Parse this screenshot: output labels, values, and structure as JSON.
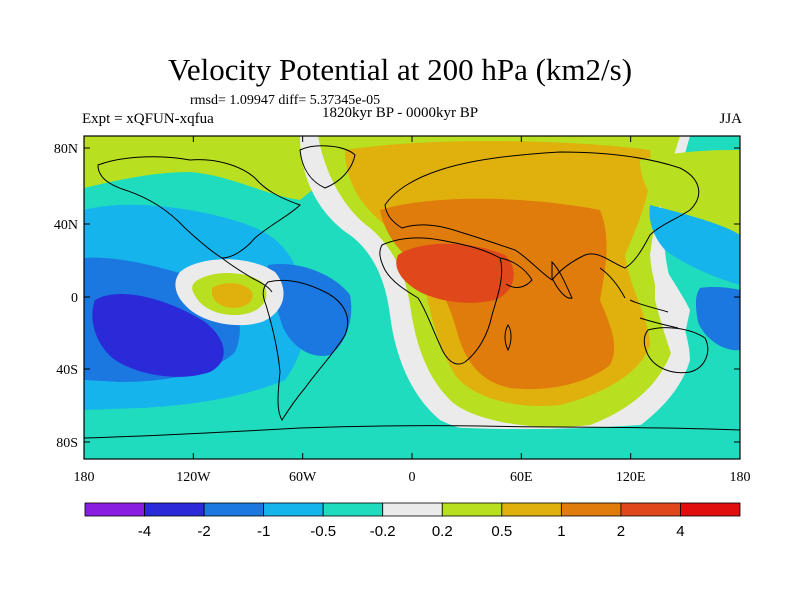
{
  "title": "Velocity Potential at 200 hPa (km2/s)",
  "stats": "rmsd= 1.09947 diff= 5.37345e-05",
  "experiment": "Expt = xQFUN-xqfua",
  "period": "1820kyr BP - 0000kyr BP",
  "season": "JJA",
  "lon_ticks": [
    "180",
    "120W",
    "60W",
    "0",
    "60E",
    "120E",
    "180"
  ],
  "lat_ticks": [
    "80N",
    "40N",
    "0",
    "40S",
    "80S"
  ],
  "colorbar": {
    "labels": [
      "-4",
      "-2",
      "-1",
      "-0.5",
      "-0.2",
      "0.2",
      "0.5",
      "1",
      "2",
      "4"
    ],
    "colors": [
      "#8a1ee0",
      "#2a2ad8",
      "#1a78e0",
      "#16b4ec",
      "#20dcbe",
      "#ebebeb",
      "#b8e020",
      "#e0b00c",
      "#e07c0c",
      "#e0481c",
      "#e00e0e"
    ]
  },
  "colors": {
    "frame": "#000000",
    "coast": "#000000"
  }
}
